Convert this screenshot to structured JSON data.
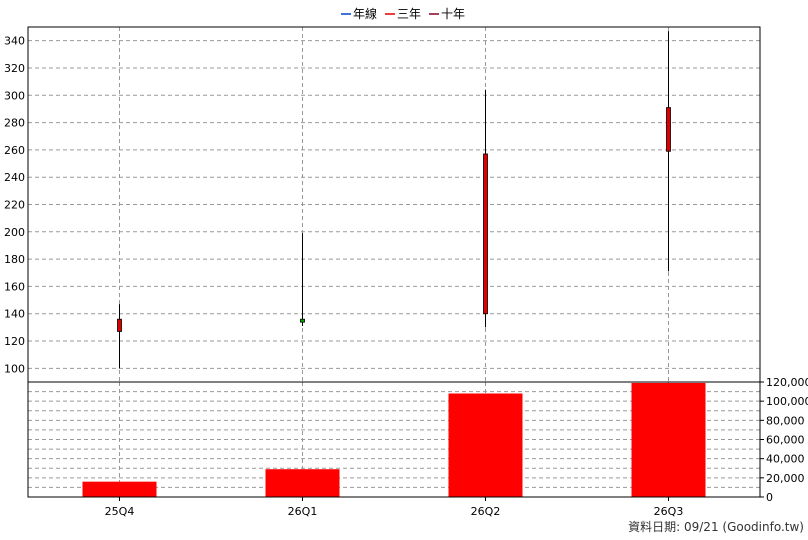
{
  "legend": [
    {
      "label": "年線",
      "color": "#0044cc"
    },
    {
      "label": "三年",
      "color": "#dd0000"
    },
    {
      "label": "十年",
      "color": "#880022"
    }
  ],
  "footer": "資料日期: 09/21  (Goodinfo.tw)",
  "chart_data": [
    {
      "type": "candlestick",
      "categories": [
        "25Q4",
        "26Q1",
        "26Q2",
        "26Q3"
      ],
      "ohlc": [
        {
          "open": 127,
          "high": 147,
          "low": 100,
          "close": 136
        },
        {
          "open": 136,
          "high": 199,
          "low": 131,
          "close": 134
        },
        {
          "open": 140,
          "high": 304,
          "low": 130,
          "close": 257
        },
        {
          "open": 259,
          "high": 347,
          "low": 171,
          "close": 291
        }
      ],
      "up_color": "#dd0000",
      "down_color": "#00aa00",
      "ylim": [
        90,
        350
      ],
      "yticks": [
        100,
        120,
        140,
        160,
        180,
        200,
        220,
        240,
        260,
        280,
        300,
        320,
        340
      ],
      "grid": true
    },
    {
      "type": "bar",
      "categories": [
        "25Q4",
        "26Q1",
        "26Q2",
        "26Q3"
      ],
      "values": [
        16000,
        29000,
        108000,
        119000
      ],
      "color": "#ff0000",
      "ylim": [
        0,
        120000
      ],
      "yticks": [
        "0",
        "20,000",
        "40,000",
        "60,000",
        "80,000",
        "100,000",
        "120,000"
      ],
      "axis_side": "right",
      "grid": true
    }
  ]
}
